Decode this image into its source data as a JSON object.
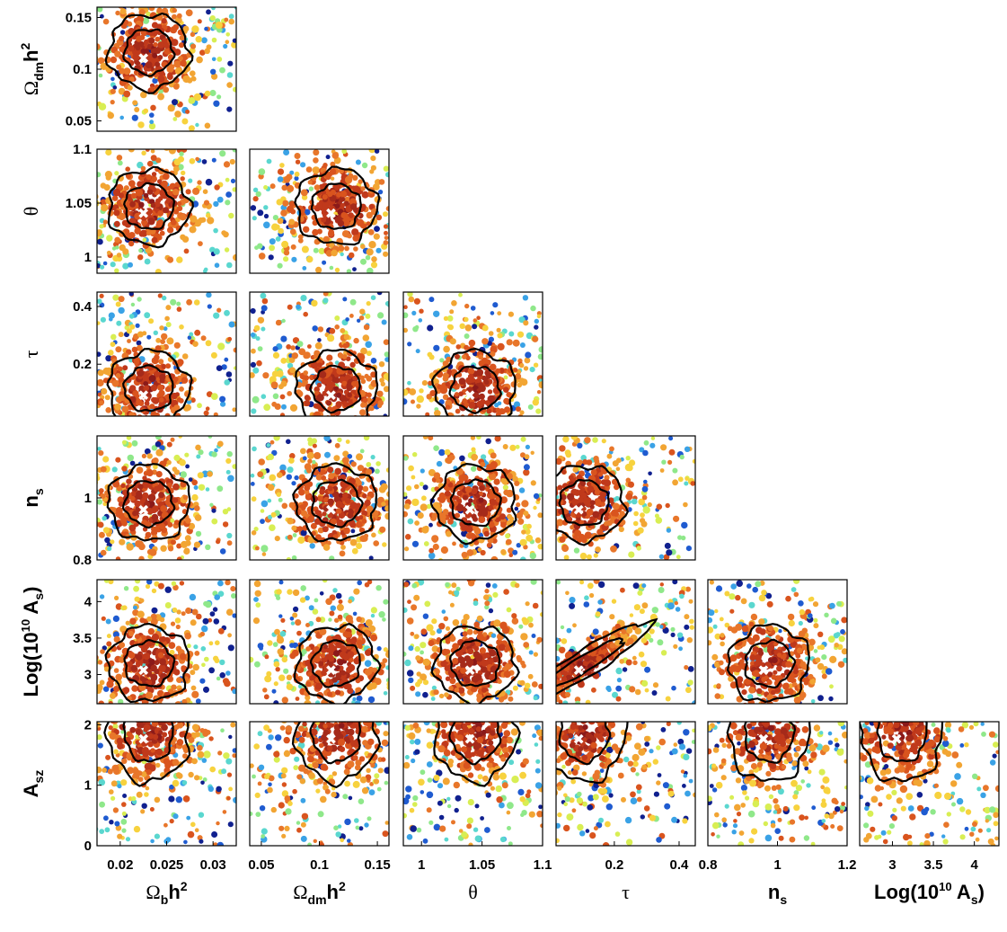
{
  "chart_data": {
    "type": "scatter",
    "title": "",
    "description_kind": "triangle corner plot of parameter pairs, points colored by likelihood, with two black confidence contours and a white x marker per panel",
    "parameters": [
      {
        "key": "omega_b",
        "label_base": "Ω",
        "label_sub": "b",
        "label_tail": "h",
        "label_sup": "2",
        "range": [
          0.0175,
          0.0325
        ],
        "ticks": [
          0.02,
          0.025,
          0.03
        ],
        "tick_labels": [
          "0.02",
          "0.025",
          "0.03"
        ],
        "best_fit": 0.0225
      },
      {
        "key": "omega_dm",
        "label_base": "Ω",
        "label_sub": "dm",
        "label_tail": "h",
        "label_sup": "2",
        "range": [
          0.04,
          0.16
        ],
        "ticks": [
          0.05,
          0.1,
          0.15
        ],
        "tick_labels": [
          "0.05",
          "0.1",
          "0.15"
        ],
        "best_fit": 0.11
      },
      {
        "key": "theta",
        "label_base": "θ",
        "label_sub": "",
        "label_tail": "",
        "label_sup": "",
        "range": [
          0.985,
          1.1
        ],
        "ticks": [
          1,
          1.05,
          1.1
        ],
        "tick_labels": [
          "1",
          "1.05",
          "1.1"
        ],
        "best_fit": 1.04
      },
      {
        "key": "tau",
        "label_base": "τ",
        "label_sub": "",
        "label_tail": "",
        "label_sup": "",
        "range": [
          0.02,
          0.45
        ],
        "ticks": [
          0.2,
          0.4
        ],
        "tick_labels": [
          "0.2",
          "0.4"
        ],
        "best_fit": 0.09
      },
      {
        "key": "n_s",
        "label_base": "n",
        "label_sub": "s",
        "label_tail": "",
        "label_sup": "",
        "range": [
          0.8,
          1.2
        ],
        "ticks": [
          0.8,
          1,
          1.2
        ],
        "tick_labels": [
          "0.8",
          "1",
          "1.2"
        ],
        "best_fit": 0.96
      },
      {
        "key": "log_as",
        "label_base": "Log(10",
        "label_sub": "",
        "label_tail": " A",
        "label_sup": "10",
        "label_sub2": "s",
        "label_close": ")",
        "range": [
          2.6,
          4.3
        ],
        "ticks": [
          3,
          3.5,
          4
        ],
        "tick_labels": [
          "3",
          "3.5",
          "4"
        ],
        "best_fit": 3.05
      },
      {
        "key": "a_sz",
        "label_base": "A",
        "label_sub": "sz",
        "label_tail": "",
        "label_sup": "",
        "range": [
          0,
          2.05
        ],
        "ticks": [
          0,
          1,
          2
        ],
        "tick_labels": [
          "0",
          "1",
          "2"
        ],
        "best_fit": 1.75
      }
    ],
    "x_parameters": [
      "omega_b",
      "omega_dm",
      "theta",
      "tau",
      "n_s",
      "log_as"
    ],
    "y_parameters": [
      "omega_dm",
      "theta",
      "tau",
      "n_s",
      "log_as",
      "a_sz"
    ],
    "y_tick_overrides": {
      "omega_dm": {
        "ticks": [
          0.05,
          0.1,
          0.15
        ],
        "tick_labels": [
          "0.05",
          "0.1",
          "0.15"
        ]
      },
      "theta": {
        "ticks": [
          1,
          1.05,
          1.1
        ],
        "tick_labels": [
          "1",
          "1.05",
          "1.1"
        ]
      },
      "tau": {
        "ticks": [
          0.2,
          0.4
        ],
        "tick_labels": [
          "0.2",
          "0.4"
        ]
      },
      "n_s": {
        "ticks": [
          0.8,
          1
        ],
        "tick_labels": [
          "0.8",
          "1"
        ]
      },
      "log_as": {
        "ticks": [
          3,
          3.5,
          4
        ],
        "tick_labels": [
          "3",
          "3.5",
          "4"
        ]
      },
      "a_sz": {
        "ticks": [
          0,
          1,
          2
        ],
        "tick_labels": [
          "0",
          "1",
          "2"
        ]
      }
    },
    "colormap": [
      "#8b1a1a",
      "#a52a1a",
      "#c0391b",
      "#d9541e",
      "#e8762a",
      "#f2a533",
      "#f7d23e",
      "#d8ee53",
      "#8fe88a",
      "#5ad7cf",
      "#3aa2e6",
      "#1f5bd0",
      "#10208f"
    ],
    "contour_color": "#000000",
    "marker": {
      "symbol": "x",
      "color": "#ffffff"
    },
    "grid": false,
    "legend": "none"
  }
}
